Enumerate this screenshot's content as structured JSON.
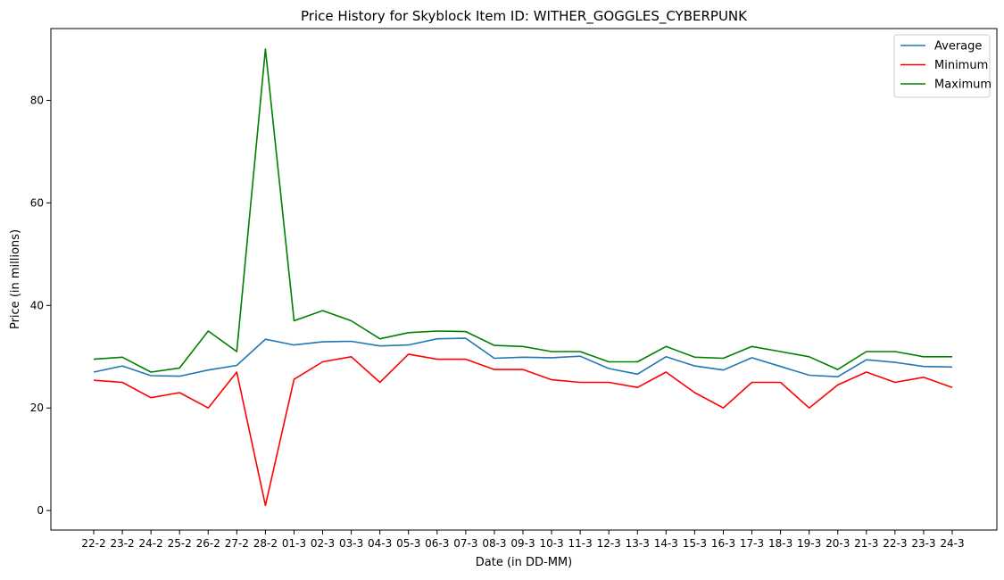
{
  "chart_data": {
    "type": "line",
    "title": "Price History for Skyblock Item ID: WITHER_GOGGLES_CYBERPUNK",
    "xlabel": "Date (in DD-MM)",
    "ylabel": "Price (in millions)",
    "categories": [
      "22-2",
      "23-2",
      "24-2",
      "25-2",
      "26-2",
      "27-2",
      "28-2",
      "01-3",
      "02-3",
      "03-3",
      "04-3",
      "05-3",
      "06-3",
      "07-3",
      "08-3",
      "09-3",
      "10-3",
      "11-3",
      "12-3",
      "13-3",
      "14-3",
      "15-3",
      "16-3",
      "17-3",
      "18-3",
      "19-3",
      "20-3",
      "21-3",
      "22-3",
      "23-3",
      "24-3"
    ],
    "y_ticks": [
      0,
      20,
      40,
      60,
      80
    ],
    "ylim": [
      -3.8,
      94.0
    ],
    "grid": false,
    "legend_position": "top-right",
    "series": [
      {
        "name": "Average",
        "color": "#1f77b4",
        "values": [
          27.0,
          28.2,
          26.3,
          26.2,
          27.4,
          28.3,
          33.4,
          32.3,
          32.9,
          33.0,
          32.1,
          32.3,
          33.5,
          33.6,
          29.7,
          29.9,
          29.8,
          30.1,
          27.7,
          26.6,
          30.0,
          28.2,
          27.4,
          29.8,
          28.1,
          26.4,
          26.1,
          29.4,
          28.9,
          28.1,
          28.0
        ]
      },
      {
        "name": "Minimum",
        "color": "#ff0000",
        "values": [
          25.4,
          25.0,
          22.0,
          23.0,
          20.0,
          27.0,
          1.0,
          25.6,
          29.0,
          30.0,
          25.0,
          30.5,
          29.5,
          29.5,
          27.5,
          27.5,
          25.5,
          25.0,
          25.0,
          24.0,
          27.0,
          23.0,
          20.0,
          25.0,
          25.0,
          20.0,
          24.5,
          27.0,
          25.0,
          26.0,
          24.0
        ]
      },
      {
        "name": "Maximum",
        "color": "#008000",
        "values": [
          29.5,
          29.9,
          27.0,
          27.8,
          35.0,
          31.0,
          90.0,
          37.0,
          39.0,
          37.0,
          33.5,
          34.7,
          35.0,
          34.9,
          32.2,
          32.0,
          31.0,
          31.0,
          29.0,
          29.0,
          32.0,
          29.9,
          29.7,
          32.0,
          31.0,
          30.0,
          27.5,
          31.0,
          31.0,
          30.0,
          30.0
        ]
      }
    ]
  }
}
